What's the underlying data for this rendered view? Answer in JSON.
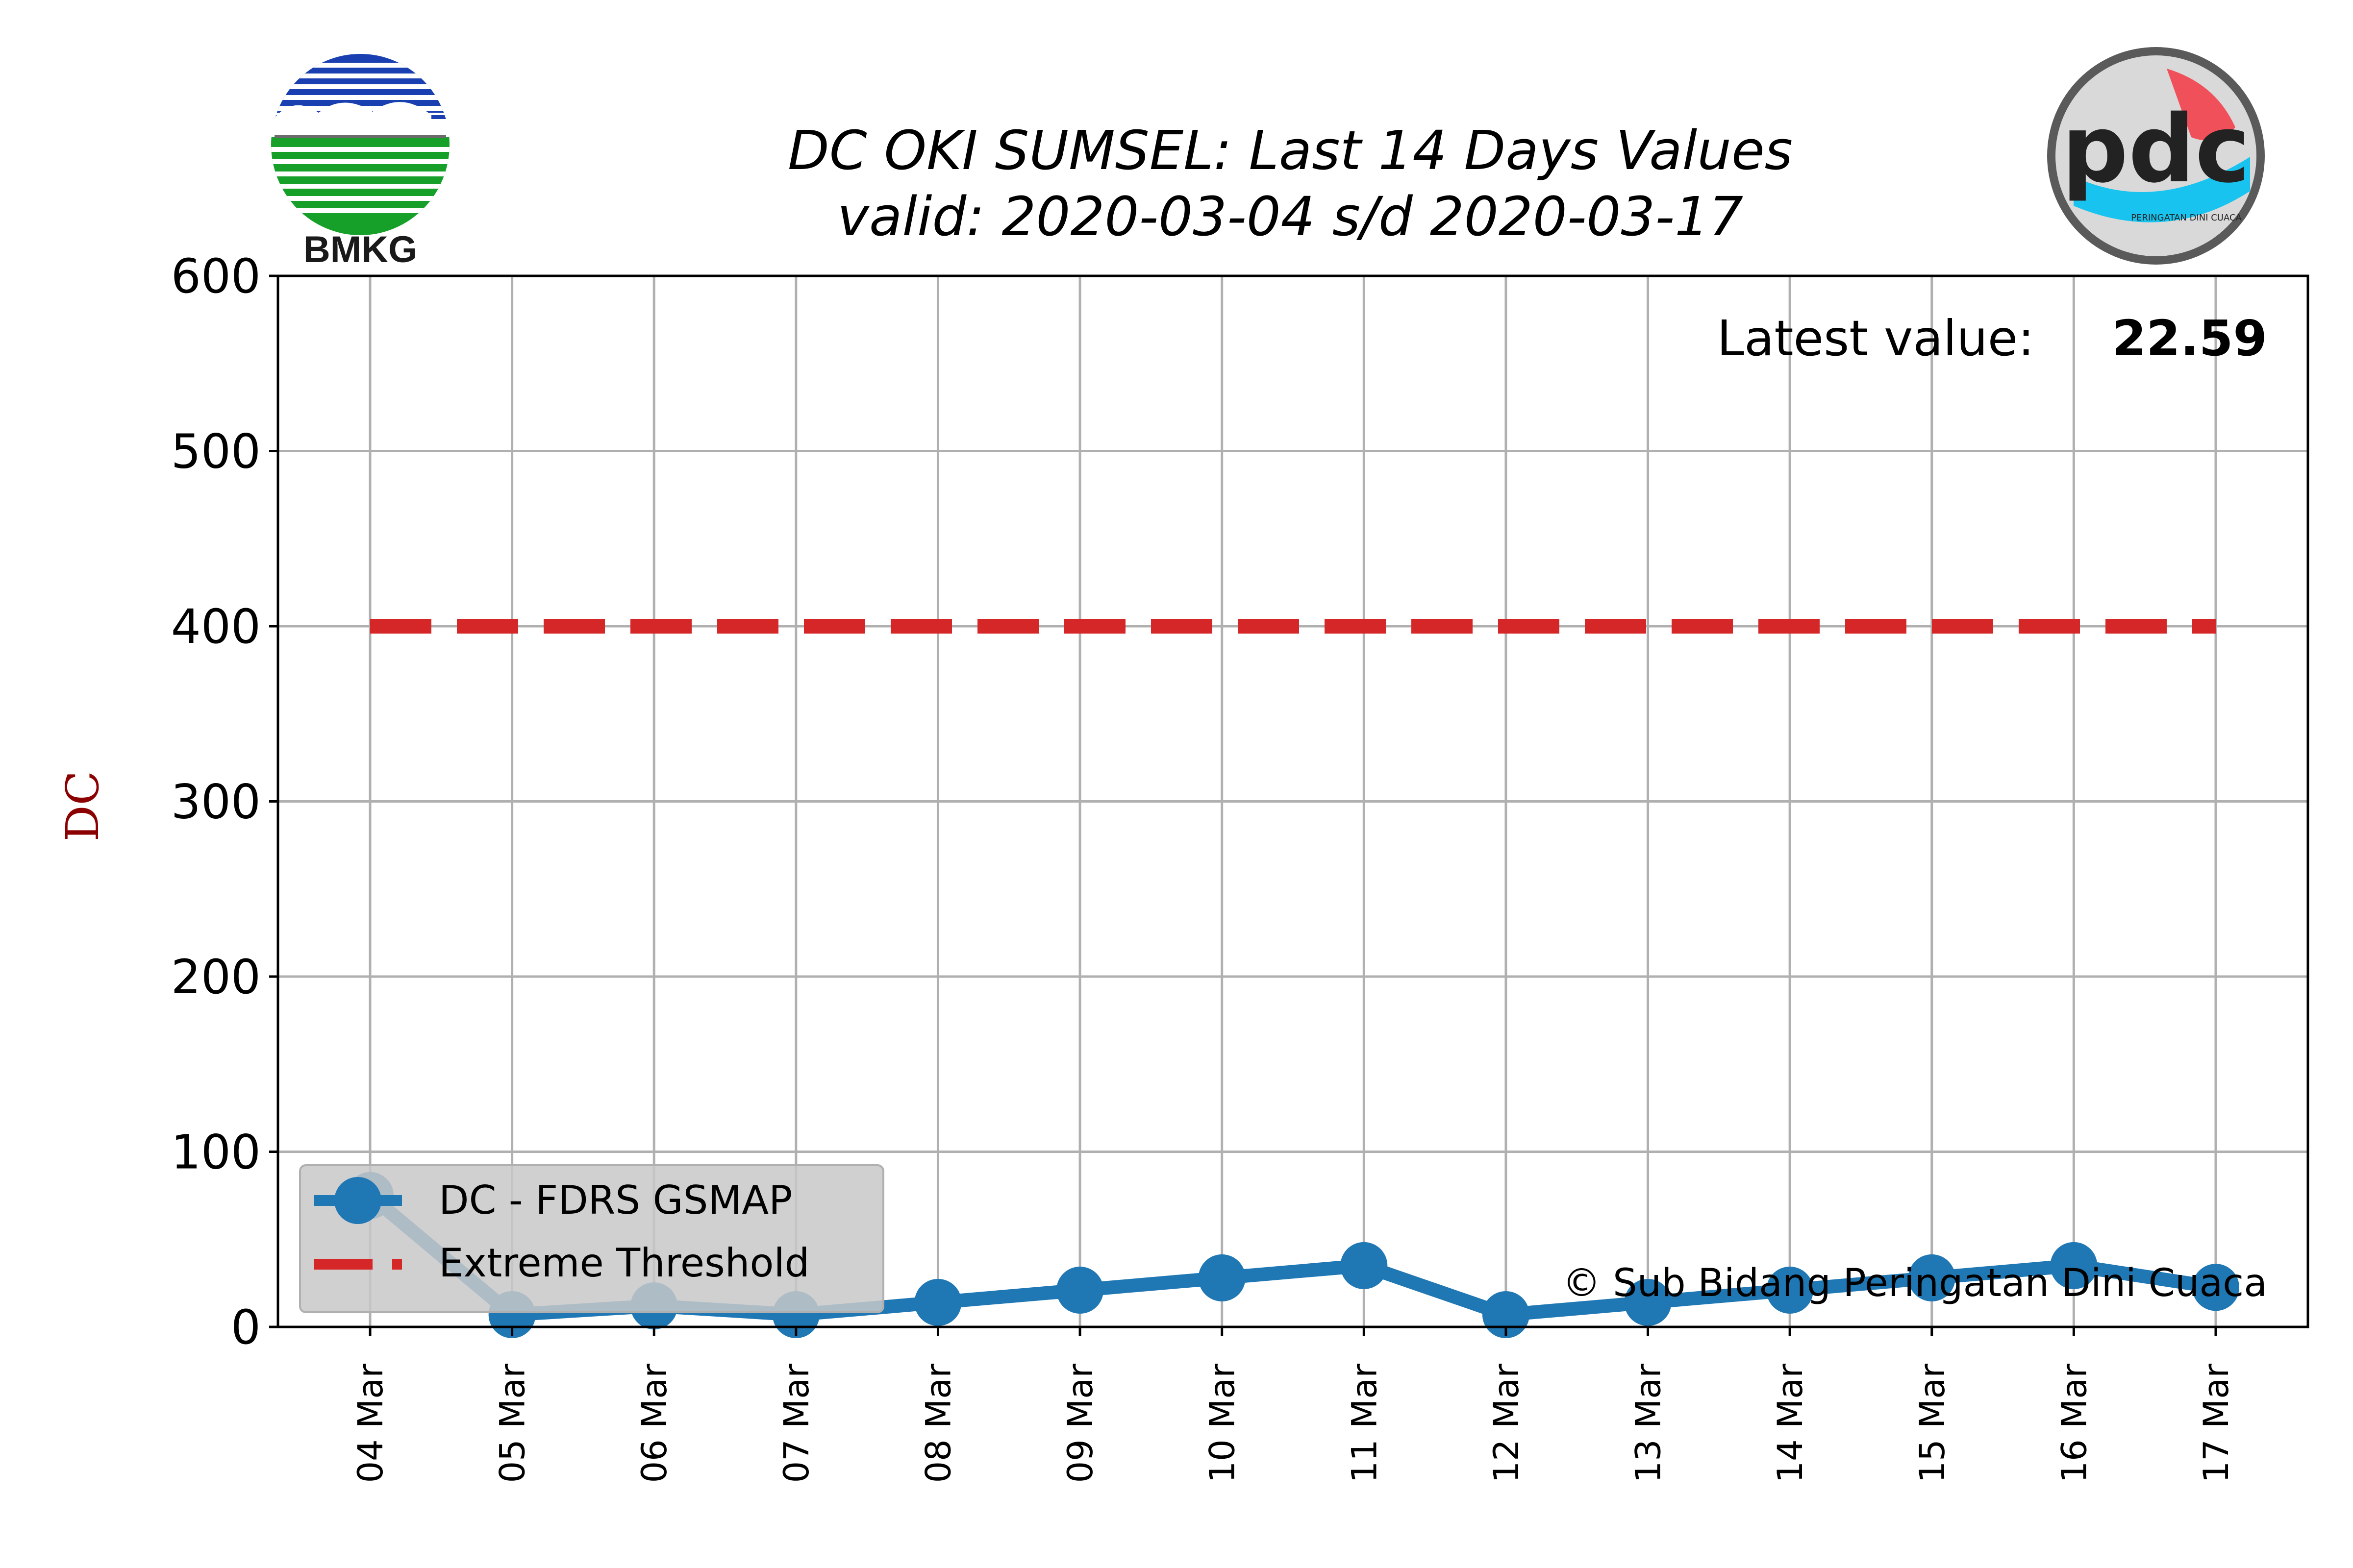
{
  "logos": {
    "left": {
      "name": "bmkg-logo",
      "text": "BMKG"
    },
    "right": {
      "name": "pdc-logo",
      "text": "pdc",
      "subtext": "PERINGATAN DINI CUACA"
    }
  },
  "chart_data": {
    "type": "line",
    "title": "DC OKI SUMSEL: Last 14 Days Values",
    "subtitle": "valid: 2020-03-04 s/d 2020-03-17",
    "ylabel": "DC",
    "ylim": [
      0,
      600
    ],
    "yticks": [
      0,
      100,
      200,
      300,
      400,
      500,
      600
    ],
    "categories": [
      "04 Mar",
      "05 Mar",
      "06 Mar",
      "07 Mar",
      "08 Mar",
      "09 Mar",
      "10 Mar",
      "11 Mar",
      "12 Mar",
      "13 Mar",
      "14 Mar",
      "15 Mar",
      "16 Mar",
      "17 Mar"
    ],
    "series": [
      {
        "name": "DC - FDRS GSMAP",
        "color": "#1f77b4",
        "style": "line-marker",
        "values": [
          75,
          7,
          12,
          7,
          14,
          21,
          28,
          35,
          7,
          14,
          21,
          28,
          35,
          22.59
        ]
      },
      {
        "name": "Extreme Threshold",
        "color": "#d62728",
        "style": "dashed",
        "values": [
          400,
          400,
          400,
          400,
          400,
          400,
          400,
          400,
          400,
          400,
          400,
          400,
          400,
          400
        ]
      }
    ],
    "grid": true,
    "legend": "lower-left",
    "latest_label": "Latest value:",
    "latest_value": "22.59",
    "credit": "© Sub Bidang Peringatan Dini Cuaca"
  }
}
